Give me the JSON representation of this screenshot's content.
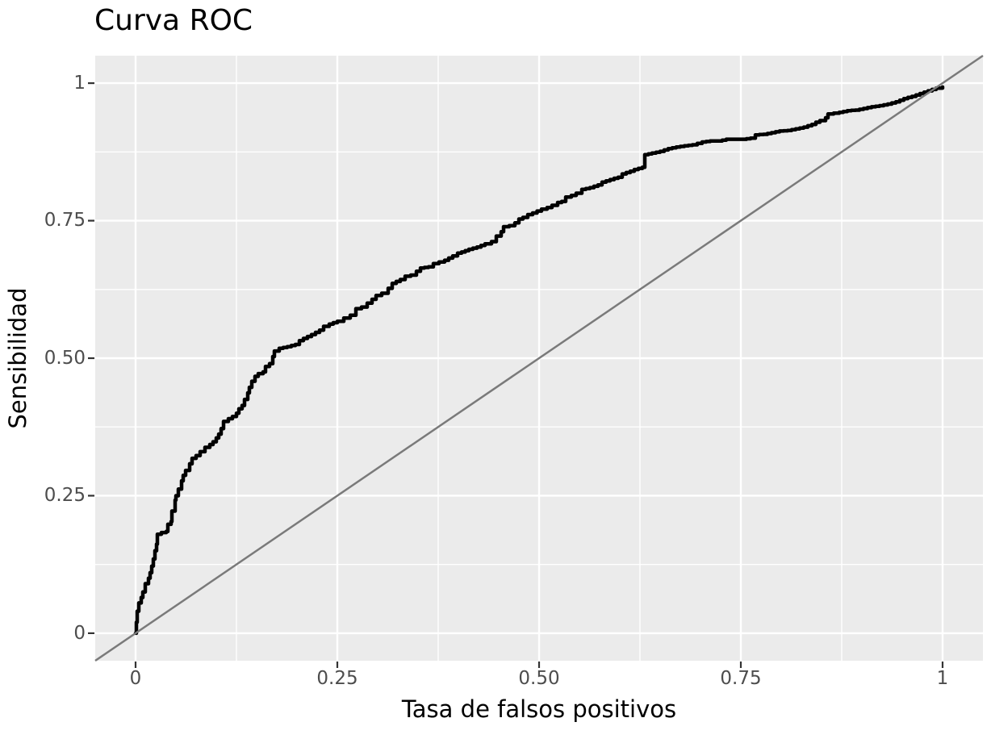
{
  "title": "Curva ROC",
  "colors": {
    "panel_bg": "#EBEBEB",
    "grid": "#FFFFFF",
    "curve": "#000000",
    "diagonal": "#7A7A7A",
    "tick_label": "#4D4D4D",
    "tick_mark": "#333333",
    "text": "#000000"
  },
  "axes": {
    "x": {
      "title": "Tasa de falsos positivos",
      "range": [
        -0.05,
        1.05
      ],
      "ticks": [
        {
          "value": 0,
          "label": "0"
        },
        {
          "value": 0.25,
          "label": "0.25"
        },
        {
          "value": 0.5,
          "label": "0.50"
        },
        {
          "value": 0.75,
          "label": "0.75"
        },
        {
          "value": 1,
          "label": "1"
        }
      ],
      "minor_ticks": [
        0.125,
        0.375,
        0.625,
        0.875
      ]
    },
    "y": {
      "title": "Sensibilidad",
      "range": [
        -0.05,
        1.05
      ],
      "ticks": [
        {
          "value": 0,
          "label": "0"
        },
        {
          "value": 0.25,
          "label": "0.25"
        },
        {
          "value": 0.5,
          "label": "0.50"
        },
        {
          "value": 0.75,
          "label": "0.75"
        },
        {
          "value": 1,
          "label": "1"
        }
      ],
      "minor_ticks": [
        0.125,
        0.375,
        0.625,
        0.875
      ]
    }
  },
  "chart_data": {
    "type": "line",
    "title": "Curva ROC",
    "xlabel": "Tasa de falsos positivos",
    "ylabel": "Sensibilidad",
    "xlim": [
      -0.05,
      1.05
    ],
    "ylim": [
      -0.05,
      1.05
    ],
    "grid": "on",
    "legend": "none",
    "series": [
      {
        "name": "roc-curve",
        "style": "step",
        "points": [
          [
            0,
            0
          ],
          [
            0.001,
            0.02
          ],
          [
            0.002,
            0.04
          ],
          [
            0.004,
            0.055
          ],
          [
            0.007,
            0.065
          ],
          [
            0.009,
            0.075
          ],
          [
            0.012,
            0.09
          ],
          [
            0.016,
            0.1
          ],
          [
            0.018,
            0.11
          ],
          [
            0.02,
            0.122
          ],
          [
            0.022,
            0.135
          ],
          [
            0.024,
            0.15
          ],
          [
            0.026,
            0.162
          ],
          [
            0.027,
            0.18
          ],
          [
            0.032,
            0.183
          ],
          [
            0.038,
            0.185
          ],
          [
            0.04,
            0.198
          ],
          [
            0.044,
            0.203
          ],
          [
            0.045,
            0.222
          ],
          [
            0.049,
            0.242
          ],
          [
            0.05,
            0.25
          ],
          [
            0.053,
            0.262
          ],
          [
            0.057,
            0.277
          ],
          [
            0.059,
            0.287
          ],
          [
            0.062,
            0.296
          ],
          [
            0.067,
            0.308
          ],
          [
            0.07,
            0.318
          ],
          [
            0.075,
            0.323
          ],
          [
            0.08,
            0.33
          ],
          [
            0.086,
            0.338
          ],
          [
            0.092,
            0.343
          ],
          [
            0.096,
            0.348
          ],
          [
            0.1,
            0.355
          ],
          [
            0.103,
            0.362
          ],
          [
            0.106,
            0.372
          ],
          [
            0.109,
            0.385
          ],
          [
            0.115,
            0.39
          ],
          [
            0.12,
            0.394
          ],
          [
            0.125,
            0.4
          ],
          [
            0.128,
            0.408
          ],
          [
            0.132,
            0.414
          ],
          [
            0.135,
            0.425
          ],
          [
            0.139,
            0.437
          ],
          [
            0.141,
            0.447
          ],
          [
            0.144,
            0.458
          ],
          [
            0.148,
            0.467
          ],
          [
            0.152,
            0.472
          ],
          [
            0.158,
            0.475
          ],
          [
            0.161,
            0.485
          ],
          [
            0.166,
            0.49
          ],
          [
            0.17,
            0.503
          ],
          [
            0.172,
            0.513
          ],
          [
            0.178,
            0.518
          ],
          [
            0.188,
            0.521
          ],
          [
            0.198,
            0.525
          ],
          [
            0.203,
            0.532
          ],
          [
            0.208,
            0.536
          ],
          [
            0.218,
            0.543
          ],
          [
            0.228,
            0.551
          ],
          [
            0.233,
            0.558
          ],
          [
            0.24,
            0.562
          ],
          [
            0.25,
            0.567
          ],
          [
            0.258,
            0.573
          ],
          [
            0.266,
            0.578
          ],
          [
            0.273,
            0.59
          ],
          [
            0.28,
            0.593
          ],
          [
            0.287,
            0.6
          ],
          [
            0.293,
            0.607
          ],
          [
            0.298,
            0.614
          ],
          [
            0.305,
            0.618
          ],
          [
            0.313,
            0.627
          ],
          [
            0.318,
            0.636
          ],
          [
            0.328,
            0.643
          ],
          [
            0.334,
            0.649
          ],
          [
            0.341,
            0.651
          ],
          [
            0.348,
            0.658
          ],
          [
            0.353,
            0.664
          ],
          [
            0.363,
            0.666
          ],
          [
            0.369,
            0.672
          ],
          [
            0.383,
            0.678
          ],
          [
            0.393,
            0.686
          ],
          [
            0.399,
            0.691
          ],
          [
            0.404,
            0.693
          ],
          [
            0.413,
            0.698
          ],
          [
            0.423,
            0.702
          ],
          [
            0.433,
            0.708
          ],
          [
            0.441,
            0.712
          ],
          [
            0.447,
            0.722
          ],
          [
            0.453,
            0.73
          ],
          [
            0.456,
            0.739
          ],
          [
            0.463,
            0.741
          ],
          [
            0.47,
            0.746
          ],
          [
            0.475,
            0.753
          ],
          [
            0.48,
            0.756
          ],
          [
            0.486,
            0.761
          ],
          [
            0.492,
            0.764
          ],
          [
            0.503,
            0.771
          ],
          [
            0.51,
            0.774
          ],
          [
            0.516,
            0.778
          ],
          [
            0.523,
            0.783
          ],
          [
            0.528,
            0.785
          ],
          [
            0.533,
            0.793
          ],
          [
            0.54,
            0.796
          ],
          [
            0.546,
            0.8
          ],
          [
            0.553,
            0.807
          ],
          [
            0.563,
            0.81
          ],
          [
            0.573,
            0.815
          ],
          [
            0.578,
            0.82
          ],
          [
            0.593,
            0.827
          ],
          [
            0.598,
            0.829
          ],
          [
            0.603,
            0.835
          ],
          [
            0.613,
            0.84
          ],
          [
            0.618,
            0.843
          ],
          [
            0.623,
            0.845
          ],
          [
            0.628,
            0.847
          ],
          [
            0.631,
            0.87
          ],
          [
            0.64,
            0.873
          ],
          [
            0.65,
            0.876
          ],
          [
            0.66,
            0.881
          ],
          [
            0.67,
            0.884
          ],
          [
            0.68,
            0.886
          ],
          [
            0.69,
            0.888
          ],
          [
            0.702,
            0.893
          ],
          [
            0.712,
            0.895
          ],
          [
            0.722,
            0.895
          ],
          [
            0.732,
            0.898
          ],
          [
            0.742,
            0.898
          ],
          [
            0.752,
            0.898
          ],
          [
            0.762,
            0.9
          ],
          [
            0.768,
            0.906
          ],
          [
            0.778,
            0.907
          ],
          [
            0.788,
            0.91
          ],
          [
            0.798,
            0.913
          ],
          [
            0.808,
            0.914
          ],
          [
            0.818,
            0.917
          ],
          [
            0.828,
            0.92
          ],
          [
            0.838,
            0.925
          ],
          [
            0.843,
            0.929
          ],
          [
            0.848,
            0.932
          ],
          [
            0.855,
            0.937
          ],
          [
            0.858,
            0.944
          ],
          [
            0.872,
            0.947
          ],
          [
            0.882,
            0.95
          ],
          [
            0.892,
            0.951
          ],
          [
            0.902,
            0.954
          ],
          [
            0.912,
            0.957
          ],
          [
            0.922,
            0.959
          ],
          [
            0.932,
            0.962
          ],
          [
            0.942,
            0.966
          ],
          [
            0.952,
            0.972
          ],
          [
            0.962,
            0.976
          ],
          [
            0.972,
            0.981
          ],
          [
            0.982,
            0.986
          ],
          [
            0.992,
            0.991
          ],
          [
            1,
            0.993
          ]
        ]
      },
      {
        "name": "reference-diagonal",
        "style": "reference",
        "points": [
          [
            -0.05,
            -0.05
          ],
          [
            1.05,
            1.05
          ]
        ]
      }
    ]
  }
}
